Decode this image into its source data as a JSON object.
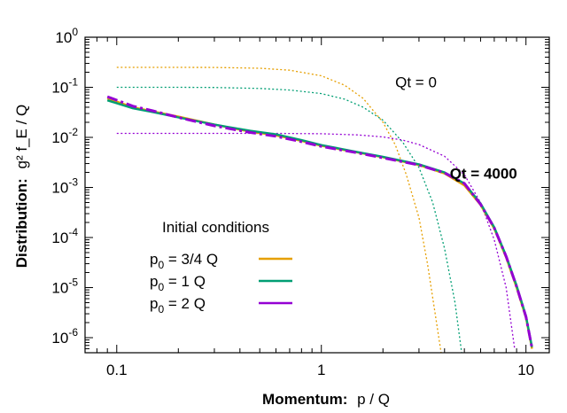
{
  "chart_data": {
    "type": "line",
    "xlabel_bold": "Momentum:",
    "xlabel_rest": "p / Q",
    "ylabel_bold": "Distribution:",
    "ylabel_rest": "g² f_E / Q",
    "xscale": "log",
    "yscale": "log",
    "xlim": [
      0.07,
      13
    ],
    "ylim": [
      5e-07,
      1
    ],
    "x_ticks": [
      {
        "value": 0.1,
        "label": "0.1"
      },
      {
        "value": 1,
        "label": "1"
      },
      {
        "value": 10,
        "label": "10"
      }
    ],
    "y_ticks": [
      {
        "value": 1,
        "base": "10",
        "exp": "0"
      },
      {
        "value": 0.1,
        "base": "10",
        "exp": "-1"
      },
      {
        "value": 0.01,
        "base": "10",
        "exp": "-2"
      },
      {
        "value": 0.001,
        "base": "10",
        "exp": "-3"
      },
      {
        "value": 0.0001,
        "base": "10",
        "exp": "-4"
      },
      {
        "value": 1e-05,
        "base": "10",
        "exp": "-5"
      },
      {
        "value": 1e-06,
        "base": "10",
        "exp": "-6"
      }
    ],
    "grid": false,
    "annotations": [
      {
        "text": "Qt = 0",
        "bold": false,
        "x": 2.9,
        "y": 0.1
      },
      {
        "text": "Qt = 4000",
        "bold": true,
        "x": 6.2,
        "y": 0.0015
      }
    ],
    "legend": {
      "title": "Initial conditions",
      "placement": "lower-left",
      "entries": [
        {
          "label": "p",
          "sub": "0",
          "rest": " = 3/4 Q",
          "color": "#E69F00"
        },
        {
          "label": "p",
          "sub": "0",
          "rest": " = 1    Q",
          "color": "#009E73"
        },
        {
          "label": "p",
          "sub": "0",
          "rest": " = 2    Q",
          "color": "#9400D3"
        }
      ]
    },
    "series": [
      {
        "name": "p0 = 3/4 Q, Qt = 0",
        "color": "#E69F00",
        "style": "dotted",
        "x": [
          0.1,
          0.2,
          0.3,
          0.5,
          0.7,
          1.0,
          1.3,
          1.6,
          2.0,
          2.3,
          2.6,
          3.0,
          3.3,
          3.6,
          3.85
        ],
        "y": [
          0.25,
          0.25,
          0.249,
          0.24,
          0.22,
          0.17,
          0.11,
          0.06,
          0.02,
          0.007,
          0.0018,
          0.00025,
          3e-05,
          3e-06,
          5e-07
        ]
      },
      {
        "name": "p0 = 1 Q, Qt = 0",
        "color": "#009E73",
        "style": "dotted",
        "x": [
          0.1,
          0.2,
          0.3,
          0.5,
          0.7,
          1.0,
          1.3,
          1.6,
          2.0,
          2.5,
          3.0,
          3.5,
          4.0,
          4.5,
          4.85
        ],
        "y": [
          0.1,
          0.1,
          0.099,
          0.095,
          0.088,
          0.075,
          0.058,
          0.04,
          0.022,
          0.008,
          0.0025,
          0.0005,
          6e-05,
          5e-06,
          5e-07
        ]
      },
      {
        "name": "p0 = 2 Q, Qt = 0",
        "color": "#9400D3",
        "style": "dotted",
        "x": [
          0.1,
          0.3,
          0.6,
          1.0,
          1.5,
          2.0,
          2.5,
          3.0,
          4.0,
          5.0,
          6.0,
          7.0,
          8.0,
          8.8
        ],
        "y": [
          0.012,
          0.012,
          0.012,
          0.0118,
          0.0112,
          0.0102,
          0.0088,
          0.0072,
          0.0042,
          0.0018,
          0.0005,
          9e-05,
          1e-05,
          6e-07
        ]
      },
      {
        "name": "p0 = 3/4 Q, Qt = 4000",
        "color": "#E69F00",
        "style": "solid",
        "x": [
          0.09,
          0.12,
          0.15,
          0.2,
          0.3,
          0.45,
          0.6,
          0.8,
          1.0,
          1.5,
          2.0,
          3.0,
          4.0,
          5.0,
          6.0,
          7.0,
          8.0,
          9.0,
          10.0,
          10.7
        ],
        "y": [
          0.06,
          0.04,
          0.033,
          0.026,
          0.018,
          0.013,
          0.011,
          0.0085,
          0.0068,
          0.005,
          0.004,
          0.0028,
          0.0019,
          0.0011,
          0.00045,
          0.00015,
          4e-05,
          1e-05,
          2.5e-06,
          6e-07
        ]
      },
      {
        "name": "p0 = 1 Q, Qt = 4000",
        "color": "#009E73",
        "style": "solid",
        "x": [
          0.09,
          0.12,
          0.15,
          0.2,
          0.3,
          0.45,
          0.6,
          0.8,
          1.0,
          1.5,
          2.0,
          3.0,
          4.0,
          5.0,
          6.0,
          7.0,
          8.0,
          9.0,
          10.0,
          10.7
        ],
        "y": [
          0.055,
          0.038,
          0.032,
          0.025,
          0.018,
          0.0135,
          0.0115,
          0.0088,
          0.007,
          0.0051,
          0.0041,
          0.0029,
          0.002,
          0.0012,
          0.00048,
          0.00016,
          4.3e-05,
          1.1e-05,
          2.7e-06,
          6.5e-07
        ]
      },
      {
        "name": "p0 = 2 Q, Qt = 4000",
        "color": "#9400D3",
        "style": "dashdot",
        "x": [
          0.09,
          0.12,
          0.15,
          0.2,
          0.3,
          0.45,
          0.6,
          0.8,
          1.0,
          1.5,
          2.0,
          3.0,
          4.0,
          5.0,
          6.0,
          7.0,
          8.0,
          9.0,
          10.0,
          10.7
        ],
        "y": [
          0.065,
          0.042,
          0.034,
          0.025,
          0.017,
          0.0125,
          0.0105,
          0.0082,
          0.0066,
          0.0049,
          0.0039,
          0.0028,
          0.00195,
          0.0012,
          0.00046,
          0.000155,
          4.2e-05,
          1.05e-05,
          2.6e-06,
          6.2e-07
        ]
      }
    ]
  }
}
